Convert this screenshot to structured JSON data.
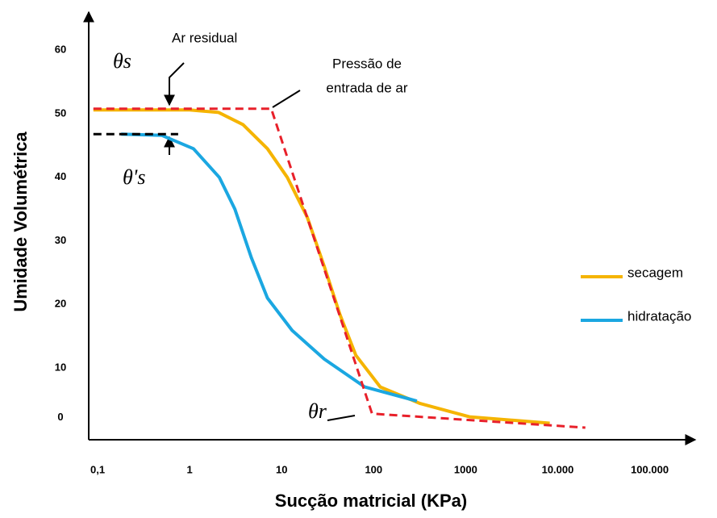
{
  "chart_data": {
    "type": "line",
    "x_label": "Sucção matricial (KPa)",
    "y_label": "Umidade Volumétrica",
    "xscale": "log",
    "xlim": [
      0.08,
      300000
    ],
    "ylim": [
      -1.3,
      66
    ],
    "xticks": [
      {
        "value": 0.1,
        "label": "0,1"
      },
      1,
      10,
      100,
      1000,
      {
        "value": 10000,
        "label": "10.000"
      },
      {
        "value": 100000,
        "label": "100.000"
      }
    ],
    "yticks": [
      0,
      10,
      20,
      30,
      40,
      50,
      60
    ],
    "grid": false,
    "legend": "right",
    "series": [
      {
        "name": "secagem",
        "color": "#f5b400",
        "x": [
          0.09,
          1,
          2.07,
          3.8,
          7,
          11.5,
          19,
          29,
          43,
          64,
          118,
          320,
          1100,
          8200
        ],
        "values": [
          50.6,
          50.6,
          50.2,
          48.3,
          44.5,
          40,
          33.7,
          26,
          18.4,
          12,
          7,
          4.4,
          2.3,
          1.3
        ]
      },
      {
        "name": "hidratação",
        "color": "#1ba7e1",
        "x": [
          0.18,
          0.5,
          1.1,
          2.1,
          3.1,
          4.7,
          7,
          13,
          29,
          80,
          295
        ],
        "values": [
          46.8,
          46.6,
          44.5,
          40,
          35,
          27.3,
          21,
          15.9,
          11.4,
          7,
          4.8
        ]
      }
    ],
    "guides": [
      {
        "color": "#e8202a",
        "x": [
          0.09,
          7.7,
          96,
          20000
        ],
        "values": [
          50.8,
          50.8,
          2.8,
          0.6
        ]
      },
      {
        "color": "#000000",
        "x": [
          0.09,
          0.75
        ],
        "values": [
          46.8,
          46.8
        ]
      }
    ],
    "annotations": {
      "theta_s": "θs",
      "theta_s_prime": "θ's",
      "theta_r": "θr",
      "ar_residual": "Ar residual",
      "entry_pressure": [
        "Pressão de",
        "entrada de ar"
      ]
    }
  }
}
